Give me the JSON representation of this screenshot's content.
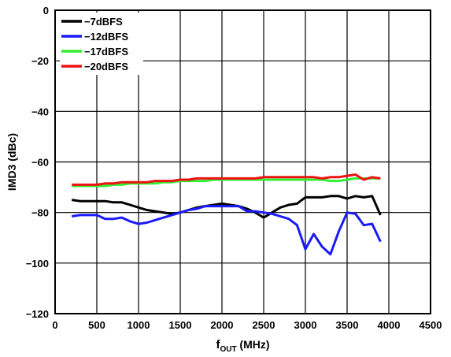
{
  "chart_data": {
    "type": "line",
    "xlabel_main": "f",
    "xlabel_sub": "OUT",
    "xlabel_unit": " (MHz)",
    "ylabel": "IMD3 (dBc)",
    "xlim": [
      0,
      4500
    ],
    "ylim": [
      -120,
      0
    ],
    "xticks": [
      0,
      500,
      1000,
      1500,
      2000,
      2500,
      3000,
      3500,
      4000,
      4500
    ],
    "yticks": [
      0,
      -20,
      -40,
      -60,
      -80,
      -100,
      -120
    ],
    "xtick_labels": [
      "0",
      "500",
      "1000",
      "1500",
      "2000",
      "2500",
      "3000",
      "3500",
      "4000",
      "4500"
    ],
    "ytick_labels": [
      "0",
      "−20",
      "−40",
      "−60",
      "−80",
      "−100",
      "−120"
    ],
    "grid": true,
    "legend_position": "top-left",
    "series": [
      {
        "name": "−7dBFS",
        "color": "#000000",
        "x": [
          200,
          300,
          400,
          500,
          600,
          700,
          800,
          900,
          1000,
          1100,
          1200,
          1300,
          1400,
          1500,
          1600,
          1700,
          1800,
          1900,
          2000,
          2100,
          2200,
          2300,
          2400,
          2500,
          2600,
          2700,
          2800,
          2900,
          3000,
          3100,
          3200,
          3300,
          3400,
          3500,
          3600,
          3700,
          3800,
          3900
        ],
        "y": [
          -75,
          -75.5,
          -75.5,
          -75.5,
          -75.5,
          -76,
          -76,
          -77,
          -78,
          -79,
          -79.5,
          -80,
          -80.5,
          -80,
          -79,
          -78,
          -77.5,
          -77,
          -76.5,
          -77,
          -77.5,
          -78.5,
          -80,
          -82,
          -80,
          -78,
          -77,
          -76.5,
          -74,
          -74,
          -74,
          -73.5,
          -73.5,
          -74.5,
          -73.5,
          -74,
          -73.5,
          -81
        ]
      },
      {
        "name": "−12dBFS",
        "color": "#1a1aff",
        "x": [
          200,
          300,
          400,
          500,
          600,
          700,
          800,
          900,
          1000,
          1100,
          1200,
          1300,
          1400,
          1500,
          1600,
          1700,
          1800,
          1900,
          2000,
          2100,
          2200,
          2300,
          2400,
          2500,
          2600,
          2700,
          2800,
          2900,
          3000,
          3100,
          3200,
          3300,
          3400,
          3500,
          3600,
          3700,
          3800,
          3900
        ],
        "y": [
          -81.5,
          -81,
          -81,
          -81,
          -82.5,
          -82.5,
          -82,
          -83.5,
          -84.5,
          -84,
          -83,
          -82,
          -81,
          -80,
          -79,
          -78.5,
          -77.5,
          -77.5,
          -77.5,
          -77.5,
          -77.5,
          -79.5,
          -79.5,
          -80,
          -80.5,
          -81.5,
          -82.5,
          -85,
          -94.5,
          -88.5,
          -93.5,
          -96.5,
          -87.5,
          -80,
          -80.5,
          -85,
          -84.5,
          -91.5
        ]
      },
      {
        "name": "−17dBFS",
        "color": "#33ee33",
        "x": [
          200,
          300,
          400,
          500,
          600,
          700,
          800,
          900,
          1000,
          1100,
          1200,
          1300,
          1400,
          1500,
          1600,
          1700,
          1800,
          1900,
          2000,
          2100,
          2200,
          2300,
          2400,
          2500,
          2600,
          2700,
          2800,
          2900,
          3000,
          3100,
          3200,
          3300,
          3400,
          3500,
          3600,
          3700,
          3800,
          3900
        ],
        "y": [
          -69.5,
          -69.5,
          -69.5,
          -69.5,
          -69.5,
          -69,
          -69,
          -68.5,
          -68.5,
          -68.5,
          -68.5,
          -68,
          -68,
          -67.5,
          -67.5,
          -67.5,
          -67.5,
          -67,
          -67,
          -67,
          -67,
          -67,
          -67,
          -67,
          -67,
          -67,
          -67,
          -67,
          -67,
          -67,
          -67,
          -67.5,
          -67.5,
          -67,
          -66.5,
          -66.5,
          -66.5,
          -66.5
        ]
      },
      {
        "name": "−20dBFS",
        "color": "#ee1111",
        "x": [
          200,
          300,
          400,
          500,
          600,
          700,
          800,
          900,
          1000,
          1100,
          1200,
          1300,
          1400,
          1500,
          1600,
          1700,
          1800,
          1900,
          2000,
          2100,
          2200,
          2300,
          2400,
          2500,
          2600,
          2700,
          2800,
          2900,
          3000,
          3100,
          3200,
          3300,
          3400,
          3500,
          3600,
          3700,
          3800,
          3900
        ],
        "y": [
          -69,
          -69,
          -69,
          -69,
          -68.5,
          -68.5,
          -68,
          -68,
          -68,
          -68,
          -67.5,
          -67.5,
          -67.5,
          -67,
          -67,
          -66.5,
          -66.5,
          -66.5,
          -66.5,
          -66.5,
          -66.5,
          -66.5,
          -66.5,
          -66,
          -66,
          -66,
          -66,
          -66,
          -66,
          -66,
          -66.5,
          -66,
          -66,
          -65.5,
          -65,
          -67,
          -66,
          -66.5
        ]
      }
    ]
  }
}
